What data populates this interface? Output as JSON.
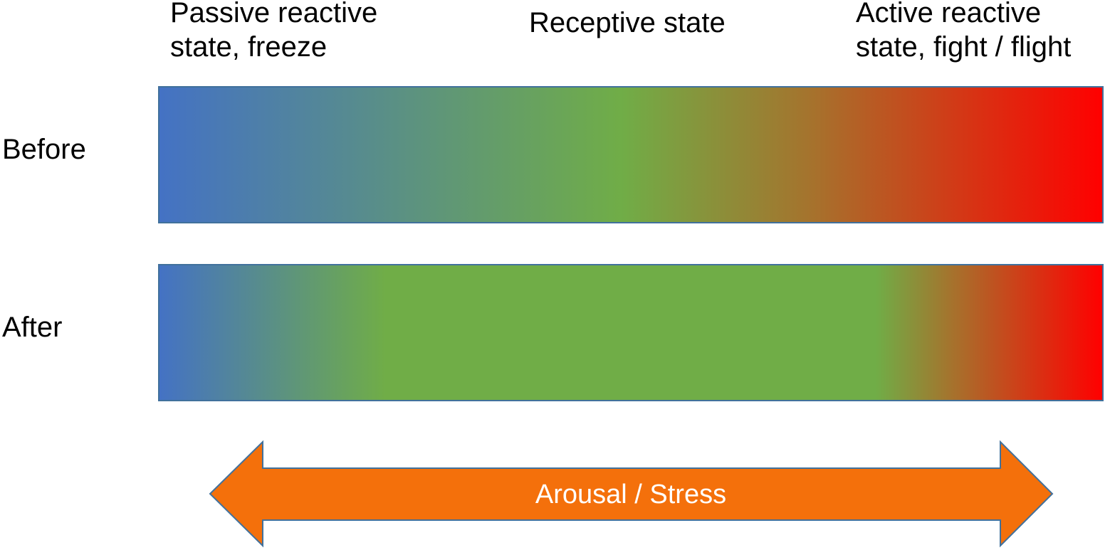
{
  "top_labels": {
    "passive": [
      "Passive reactive",
      "state, freeze"
    ],
    "receptive": "Receptive state",
    "active": [
      "Active reactive",
      "state, fight / flight"
    ]
  },
  "rows": {
    "before": "Before",
    "after": "After"
  },
  "arrow": {
    "label": "Arousal / Stress",
    "fill_color": "#f4700b",
    "stroke_color": "#41719c"
  },
  "gradient_colors": {
    "blue": "#4472c4",
    "green": "#70ad47",
    "red": "#ff0000"
  }
}
